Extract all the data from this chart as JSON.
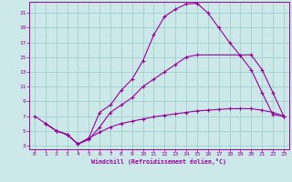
{
  "xlabel": "Windchill (Refroidissement éolien,°C)",
  "bg_color": "#cce8e8",
  "line_color": "#990099",
  "grid_color": "#99cccc",
  "xlim": [
    -0.5,
    23.5
  ],
  "ylim": [
    2.5,
    22.5
  ],
  "xticks": [
    0,
    1,
    2,
    3,
    4,
    5,
    6,
    7,
    8,
    9,
    10,
    11,
    12,
    13,
    14,
    15,
    16,
    17,
    18,
    19,
    20,
    21,
    22,
    23
  ],
  "yticks": [
    3,
    5,
    7,
    9,
    11,
    13,
    15,
    17,
    19,
    21
  ],
  "curve1_x": [
    0,
    1,
    2,
    3,
    4,
    5,
    6,
    7,
    8,
    9,
    10,
    11,
    12,
    13,
    14,
    15,
    16,
    17,
    18,
    19,
    20,
    21,
    22,
    23
  ],
  "curve1_y": [
    7,
    6,
    5,
    4.5,
    3.2,
    4.0,
    7.5,
    8.5,
    10.5,
    12,
    14.5,
    18,
    20.5,
    21.5,
    22.2,
    22.3,
    21,
    19,
    17,
    15.2,
    13.3,
    10.2,
    7.2,
    7
  ],
  "curve2_x": [
    1,
    2,
    3,
    4,
    5,
    6,
    7,
    8,
    9,
    10,
    11,
    12,
    13,
    14,
    15,
    20,
    21,
    22,
    23
  ],
  "curve2_y": [
    6,
    5,
    4.5,
    3.2,
    3.8,
    5.5,
    7.5,
    8.5,
    9.5,
    11,
    12,
    13,
    14,
    15,
    15.3,
    15.3,
    13.3,
    10.2,
    7
  ],
  "curve3_x": [
    1,
    2,
    3,
    4,
    5,
    6,
    7,
    8,
    9,
    10,
    11,
    12,
    13,
    14,
    15,
    16,
    17,
    18,
    19,
    20,
    21,
    22,
    23
  ],
  "curve3_y": [
    6,
    5,
    4.5,
    3.2,
    4.0,
    4.8,
    5.5,
    6.0,
    6.3,
    6.6,
    6.9,
    7.1,
    7.3,
    7.5,
    7.7,
    7.8,
    7.9,
    8.0,
    8.0,
    8.0,
    7.8,
    7.5,
    7.0
  ]
}
